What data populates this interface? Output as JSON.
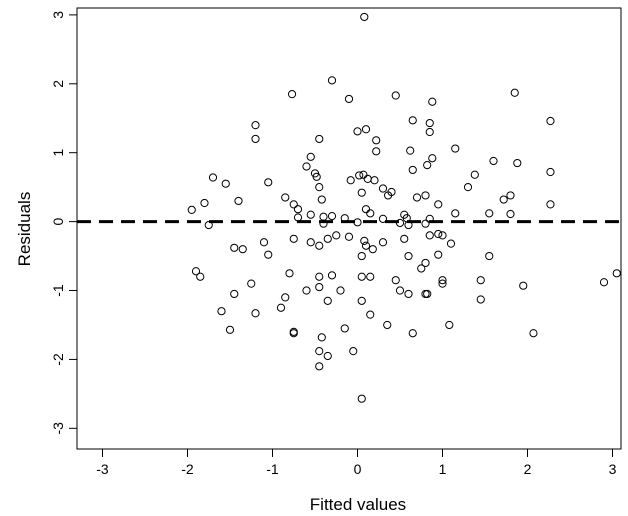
{
  "chart_data": {
    "type": "scatter",
    "title": "",
    "xlabel": "Fitted values",
    "ylabel": "Residuals",
    "xlim": [
      -3.3,
      3.1
    ],
    "ylim": [
      -3.3,
      3.1
    ],
    "xticks": [
      -3,
      -2,
      -1,
      0,
      1,
      2,
      3
    ],
    "yticks": [
      -3,
      -2,
      -1,
      0,
      1,
      2,
      3
    ],
    "xtick_labels": [
      "-3",
      "-2",
      "-1",
      "0",
      "1",
      "2",
      "3"
    ],
    "ytick_labels": [
      "-3",
      "-2",
      "-1",
      "0",
      "1",
      "2",
      "3"
    ],
    "reference_line": {
      "y": 0,
      "style": "dashed"
    },
    "marker": "open-circle",
    "grid": false,
    "legend": "none",
    "series": [
      {
        "points": [
          [
            0.08,
            2.97
          ],
          [
            -0.3,
            2.05
          ],
          [
            0.45,
            1.83
          ],
          [
            -0.1,
            1.78
          ],
          [
            1.85,
            1.87
          ],
          [
            -0.77,
            1.85
          ],
          [
            0.88,
            1.74
          ],
          [
            -1.2,
            1.4
          ],
          [
            0.65,
            1.47
          ],
          [
            0.85,
            1.43
          ],
          [
            2.27,
            1.46
          ],
          [
            0.1,
            1.34
          ],
          [
            0.0,
            1.31
          ],
          [
            0.85,
            1.3
          ],
          [
            -1.2,
            1.2
          ],
          [
            -0.45,
            1.2
          ],
          [
            0.22,
            1.18
          ],
          [
            0.22,
            1.02
          ],
          [
            0.62,
            1.03
          ],
          [
            1.15,
            1.06
          ],
          [
            -0.55,
            0.94
          ],
          [
            0.88,
            0.92
          ],
          [
            1.6,
            0.88
          ],
          [
            1.88,
            0.85
          ],
          [
            0.82,
            0.82
          ],
          [
            0.65,
            0.75
          ],
          [
            -0.6,
            0.8
          ],
          [
            2.27,
            0.72
          ],
          [
            -0.5,
            0.7
          ],
          [
            -0.48,
            0.65
          ],
          [
            -1.7,
            0.64
          ],
          [
            0.02,
            0.67
          ],
          [
            0.07,
            0.68
          ],
          [
            1.38,
            0.68
          ],
          [
            0.12,
            0.62
          ],
          [
            -0.08,
            0.6
          ],
          [
            0.2,
            0.6
          ],
          [
            -1.55,
            0.55
          ],
          [
            -1.05,
            0.57
          ],
          [
            -0.45,
            0.5
          ],
          [
            0.3,
            0.48
          ],
          [
            0.4,
            0.43
          ],
          [
            0.05,
            0.42
          ],
          [
            0.36,
            0.38
          ],
          [
            1.3,
            0.5
          ],
          [
            1.8,
            0.38
          ],
          [
            1.72,
            0.32
          ],
          [
            0.8,
            0.38
          ],
          [
            -0.75,
            0.25
          ],
          [
            0.7,
            0.35
          ],
          [
            -0.85,
            0.35
          ],
          [
            -1.4,
            0.3
          ],
          [
            -1.8,
            0.27
          ],
          [
            -1.95,
            0.17
          ],
          [
            -0.42,
            0.32
          ],
          [
            -0.7,
            0.18
          ],
          [
            0.1,
            0.18
          ],
          [
            2.27,
            0.25
          ],
          [
            0.95,
            0.25
          ],
          [
            0.15,
            0.12
          ],
          [
            -0.55,
            0.1
          ],
          [
            0.55,
            0.1
          ],
          [
            1.15,
            0.12
          ],
          [
            1.55,
            0.12
          ],
          [
            1.8,
            0.11
          ],
          [
            -0.4,
            0.07
          ],
          [
            -0.3,
            0.08
          ],
          [
            -0.7,
            0.06
          ],
          [
            -0.15,
            0.05
          ],
          [
            0.3,
            0.04
          ],
          [
            0.58,
            0.05
          ],
          [
            0.85,
            0.04
          ],
          [
            -1.75,
            -0.05
          ],
          [
            -0.4,
            -0.03
          ],
          [
            0.0,
            -0.01
          ],
          [
            0.5,
            -0.02
          ],
          [
            0.8,
            -0.03
          ],
          [
            0.6,
            -0.05
          ],
          [
            -0.1,
            -0.22
          ],
          [
            -0.35,
            -0.25
          ],
          [
            -0.25,
            -0.2
          ],
          [
            0.55,
            -0.25
          ],
          [
            0.85,
            -0.2
          ],
          [
            0.95,
            -0.18
          ],
          [
            1.0,
            -0.2
          ],
          [
            -0.75,
            -0.25
          ],
          [
            -1.1,
            -0.3
          ],
          [
            -0.55,
            -0.3
          ],
          [
            0.08,
            -0.28
          ],
          [
            0.1,
            -0.35
          ],
          [
            0.18,
            -0.4
          ],
          [
            1.1,
            -0.32
          ],
          [
            -1.35,
            -0.4
          ],
          [
            -1.45,
            -0.38
          ],
          [
            -0.45,
            -0.35
          ],
          [
            0.3,
            -0.3
          ],
          [
            0.05,
            -0.5
          ],
          [
            0.6,
            -0.5
          ],
          [
            1.55,
            -0.5
          ],
          [
            -1.05,
            -0.48
          ],
          [
            0.95,
            -0.48
          ],
          [
            0.8,
            -0.6
          ],
          [
            0.75,
            -0.68
          ],
          [
            -1.9,
            -0.72
          ],
          [
            -1.85,
            -0.8
          ],
          [
            -0.3,
            -0.78
          ],
          [
            -0.45,
            -0.8
          ],
          [
            -0.8,
            -0.75
          ],
          [
            0.05,
            -0.8
          ],
          [
            0.15,
            -0.8
          ],
          [
            0.45,
            -0.85
          ],
          [
            1.0,
            -0.85
          ],
          [
            1.45,
            -0.85
          ],
          [
            1.95,
            -0.93
          ],
          [
            3.05,
            -0.75
          ],
          [
            2.9,
            -0.88
          ],
          [
            -1.25,
            -0.9
          ],
          [
            -0.45,
            -0.95
          ],
          [
            1.0,
            -0.9
          ],
          [
            -1.45,
            -1.05
          ],
          [
            -0.6,
            -1.0
          ],
          [
            0.5,
            -1.0
          ],
          [
            0.82,
            -1.05
          ],
          [
            0.8,
            -1.05
          ],
          [
            -0.85,
            -1.1
          ],
          [
            -0.2,
            -1.0
          ],
          [
            0.6,
            -1.05
          ],
          [
            -0.35,
            -1.15
          ],
          [
            1.45,
            -1.13
          ],
          [
            -0.9,
            -1.25
          ],
          [
            -1.6,
            -1.3
          ],
          [
            -1.2,
            -1.33
          ],
          [
            0.15,
            -1.35
          ],
          [
            0.05,
            -1.15
          ],
          [
            -1.5,
            -1.57
          ],
          [
            -0.75,
            -1.6
          ],
          [
            -0.75,
            -1.62
          ],
          [
            -0.15,
            -1.55
          ],
          [
            0.35,
            -1.5
          ],
          [
            0.65,
            -1.62
          ],
          [
            1.08,
            -1.5
          ],
          [
            2.07,
            -1.62
          ],
          [
            -0.42,
            -1.68
          ],
          [
            -0.05,
            -1.88
          ],
          [
            -0.45,
            -1.88
          ],
          [
            -0.35,
            -1.95
          ],
          [
            -0.45,
            -2.1
          ],
          [
            0.05,
            -2.57
          ]
        ]
      }
    ]
  }
}
